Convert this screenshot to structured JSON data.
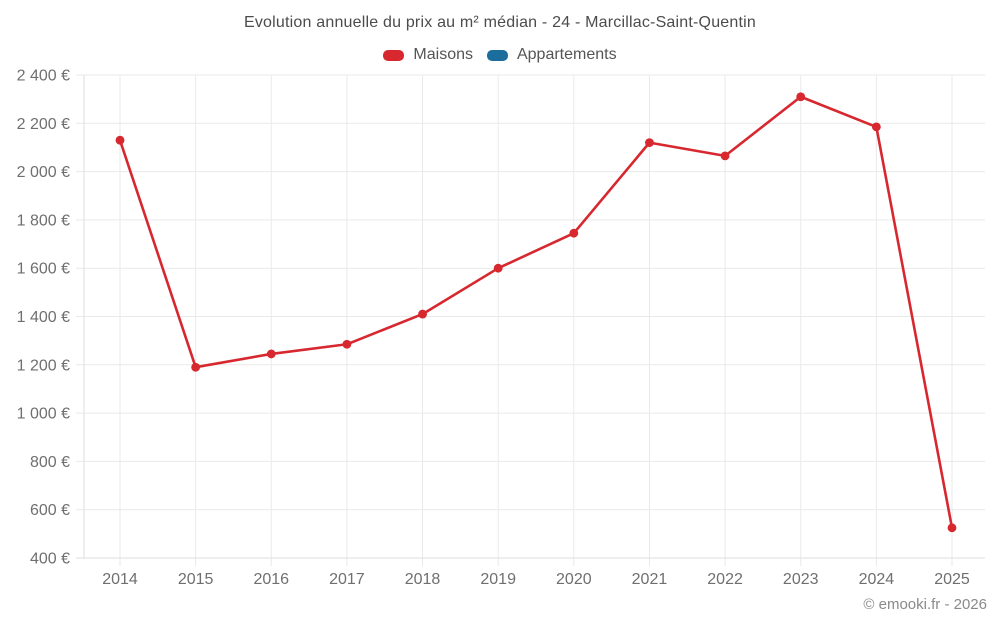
{
  "title": "Evolution annuelle du prix au m² médian - 24 - Marcillac-Saint-Quentin",
  "legend": [
    {
      "label": "Maisons",
      "color": "#d7282f"
    },
    {
      "label": "Appartements",
      "color": "#1b6d9e"
    }
  ],
  "footer": {
    "copyright": "© emooki.fr - 2026"
  },
  "colors": {
    "maisons_red": "#d7282f",
    "appartements_blue": "#1b6d9e",
    "gridline": "#e9e9e9",
    "axis_line": "#dedede",
    "tick_label": "#6f6f6f",
    "title_text": "#4c4c4c"
  },
  "chart_data": {
    "type": "line",
    "title": "Evolution annuelle du prix au m² médian - 24 - Marcillac-Saint-Quentin",
    "categories": [
      "2014",
      "2015",
      "2016",
      "2017",
      "2018",
      "2019",
      "2020",
      "2021",
      "2022",
      "2023",
      "2024",
      "2025"
    ],
    "series": [
      {
        "name": "Maisons",
        "color": "#d7282f",
        "values": [
          2130,
          1190,
          1245,
          1285,
          1410,
          1600,
          1745,
          2120,
          2065,
          2310,
          2185,
          525
        ]
      },
      {
        "name": "Appartements",
        "color": "#1b6d9e",
        "values": []
      }
    ],
    "xlabel": "",
    "ylabel": "",
    "ylim": [
      400,
      2400
    ],
    "y_tick_step": 200,
    "y_tick_suffix": " €",
    "grid": true,
    "legend_position": "top",
    "marker_radius": 4.4,
    "line_width": 2.6
  }
}
